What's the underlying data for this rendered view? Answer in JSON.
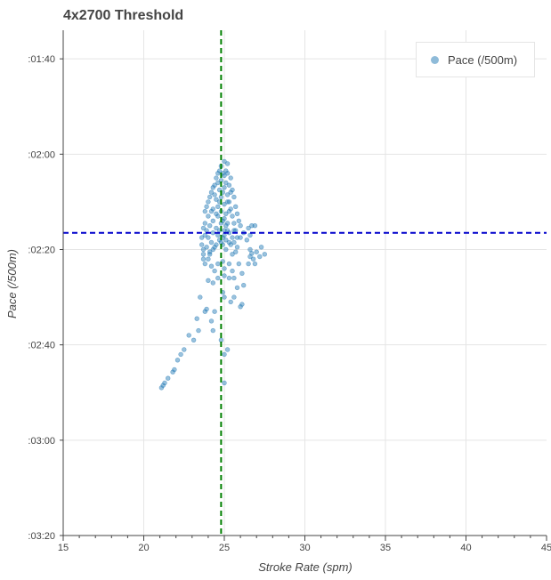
{
  "chart_data": {
    "type": "scatter",
    "title": "4x2700 Threshold",
    "xlabel": "Stroke Rate (spm)",
    "ylabel": "Pace (/500m)",
    "xlim": [
      15,
      45
    ],
    "ylim_seconds": [
      94,
      200
    ],
    "y_axis_inverted": true,
    "x_ticks": [
      15,
      20,
      25,
      30,
      35,
      40,
      45
    ],
    "x_tick_labels": [
      "15",
      "20",
      "25",
      "30",
      "35",
      "40",
      "45"
    ],
    "y_ticks_seconds": [
      100,
      120,
      140,
      160,
      180,
      200
    ],
    "y_tick_labels": [
      ":01:40",
      ":02:00",
      ":02:20",
      ":02:40",
      ":03:00",
      ":03:20"
    ],
    "grid": true,
    "legend": {
      "position": "top-right",
      "entries": [
        "Pace (/500m)"
      ]
    },
    "series": [
      {
        "name": "Pace (/500m)",
        "color": "#1f77b4",
        "points": [
          [
            21.1,
            169.0
          ],
          [
            21.2,
            168.5
          ],
          [
            21.3,
            168.0
          ],
          [
            21.5,
            167.0
          ],
          [
            21.8,
            165.7
          ],
          [
            21.9,
            165.2
          ],
          [
            22.1,
            163.2
          ],
          [
            22.3,
            162.0
          ],
          [
            22.5,
            161.0
          ],
          [
            22.8,
            158.0
          ],
          [
            23.1,
            159.0
          ],
          [
            23.4,
            157.0
          ],
          [
            23.3,
            154.5
          ],
          [
            23.5,
            150.0
          ],
          [
            23.8,
            153.0
          ],
          [
            23.9,
            152.5
          ],
          [
            24.2,
            155.0
          ],
          [
            24.3,
            157.0
          ],
          [
            24.4,
            153.0
          ],
          [
            24.8,
            159.0
          ],
          [
            25.0,
            162.0
          ],
          [
            25.2,
            161.0
          ],
          [
            24.9,
            149.0
          ],
          [
            25.0,
            150.0
          ],
          [
            25.4,
            151.0
          ],
          [
            25.6,
            150.0
          ],
          [
            26.0,
            152.0
          ],
          [
            26.1,
            151.5
          ],
          [
            25.8,
            148.0
          ],
          [
            25.6,
            146.0
          ],
          [
            26.2,
            147.5
          ],
          [
            26.1,
            145.0
          ],
          [
            25.3,
            146.0
          ],
          [
            25.0,
            145.5
          ],
          [
            24.6,
            146.0
          ],
          [
            24.0,
            146.5
          ],
          [
            24.3,
            147.0
          ],
          [
            25.0,
            168.0
          ],
          [
            26.6,
            140.0
          ],
          [
            26.6,
            141.5
          ],
          [
            26.8,
            142.0
          ],
          [
            26.5,
            143.0
          ],
          [
            27.0,
            140.5
          ],
          [
            27.2,
            141.5
          ],
          [
            27.3,
            139.5
          ],
          [
            27.5,
            141.0
          ],
          [
            26.9,
            143.0
          ],
          [
            26.7,
            140.8
          ],
          [
            26.5,
            135.5
          ],
          [
            26.7,
            135.0
          ],
          [
            26.9,
            135.0
          ],
          [
            26.6,
            137.0
          ],
          [
            25.6,
            136.0
          ],
          [
            25.8,
            137.5
          ],
          [
            23.6,
            137.5
          ],
          [
            23.6,
            139.0
          ],
          [
            23.7,
            140.0
          ],
          [
            23.7,
            141.0
          ],
          [
            23.7,
            142.0
          ],
          [
            23.8,
            143.0
          ],
          [
            23.8,
            137.0
          ],
          [
            23.9,
            136.0
          ],
          [
            23.7,
            135.5
          ],
          [
            23.8,
            134.5
          ],
          [
            24.0,
            142.0
          ],
          [
            24.1,
            141.0
          ],
          [
            24.3,
            140.0
          ],
          [
            24.5,
            139.0
          ],
          [
            24.8,
            138.5
          ],
          [
            25.1,
            140.0
          ],
          [
            25.4,
            139.0
          ],
          [
            25.5,
            141.0
          ],
          [
            25.7,
            140.5
          ],
          [
            25.3,
            143.0
          ],
          [
            24.9,
            142.5
          ],
          [
            24.2,
            143.5
          ],
          [
            24.6,
            143.0
          ],
          [
            25.0,
            144.0
          ],
          [
            25.5,
            144.5
          ],
          [
            25.9,
            143.0
          ],
          [
            24.4,
            144.5
          ],
          [
            23.8,
            132.0
          ],
          [
            23.9,
            131.0
          ],
          [
            24.0,
            130.0
          ],
          [
            24.0,
            133.0
          ],
          [
            24.1,
            129.0
          ],
          [
            24.2,
            128.0
          ],
          [
            24.3,
            127.0
          ],
          [
            24.3,
            131.5
          ],
          [
            24.4,
            126.5
          ],
          [
            24.5,
            125.0
          ],
          [
            24.5,
            129.5
          ],
          [
            24.6,
            124.0
          ],
          [
            24.6,
            133.0
          ],
          [
            24.7,
            127.5
          ],
          [
            24.7,
            130.0
          ],
          [
            24.8,
            125.5
          ],
          [
            24.8,
            132.0
          ],
          [
            24.9,
            128.0
          ],
          [
            24.9,
            134.0
          ],
          [
            25.0,
            124.5
          ],
          [
            25.0,
            130.5
          ],
          [
            25.0,
            136.0
          ],
          [
            25.1,
            126.0
          ],
          [
            25.1,
            132.5
          ],
          [
            25.2,
            124.0
          ],
          [
            25.2,
            128.5
          ],
          [
            25.2,
            134.5
          ],
          [
            25.3,
            126.5
          ],
          [
            25.3,
            130.0
          ],
          [
            25.3,
            136.5
          ],
          [
            25.4,
            125.0
          ],
          [
            25.4,
            131.5
          ],
          [
            25.5,
            127.5
          ],
          [
            25.5,
            133.0
          ],
          [
            25.6,
            129.0
          ],
          [
            25.6,
            134.5
          ],
          [
            25.7,
            131.0
          ],
          [
            25.7,
            136.0
          ],
          [
            25.8,
            132.5
          ],
          [
            25.9,
            134.0
          ],
          [
            26.0,
            135.0
          ],
          [
            24.9,
            124.0
          ],
          [
            25.1,
            123.5
          ],
          [
            24.7,
            123.5
          ],
          [
            24.4,
            128.5
          ],
          [
            24.2,
            132.0
          ],
          [
            24.1,
            135.0
          ],
          [
            24.3,
            136.5
          ],
          [
            24.5,
            135.5
          ],
          [
            24.6,
            137.0
          ],
          [
            24.8,
            134.5
          ],
          [
            24.9,
            137.5
          ],
          [
            25.1,
            138.0
          ],
          [
            25.3,
            138.5
          ],
          [
            24.0,
            137.5
          ],
          [
            24.2,
            138.5
          ],
          [
            24.4,
            139.5
          ],
          [
            24.7,
            136.0
          ],
          [
            23.9,
            139.5
          ],
          [
            25.0,
            137.0
          ],
          [
            25.5,
            137.5
          ],
          [
            25.2,
            136.0
          ],
          [
            24.6,
            131.0
          ],
          [
            24.8,
            129.0
          ],
          [
            25.0,
            127.0
          ],
          [
            25.2,
            130.0
          ],
          [
            25.4,
            128.0
          ],
          [
            25.1,
            135.0
          ],
          [
            24.5,
            132.5
          ],
          [
            24.3,
            134.0
          ],
          [
            24.7,
            138.0
          ],
          [
            24.9,
            139.0
          ],
          [
            25.6,
            138.5
          ],
          [
            25.8,
            139.5
          ],
          [
            26.0,
            137.5
          ],
          [
            26.2,
            136.5
          ],
          [
            26.4,
            138.0
          ],
          [
            24.1,
            140.5
          ],
          [
            25.0,
            133.5
          ],
          [
            25.3,
            132.0
          ],
          [
            24.6,
            126.0
          ],
          [
            24.8,
            122.5
          ],
          [
            25.0,
            121.5
          ],
          [
            25.2,
            122.0
          ]
        ]
      }
    ],
    "reference_lines": [
      {
        "orientation": "vertical",
        "x": 24.8,
        "color": "#008000",
        "style": "dashed"
      },
      {
        "orientation": "horizontal",
        "y_seconds": 136.5,
        "color": "#0000cc",
        "style": "dashed"
      }
    ]
  }
}
